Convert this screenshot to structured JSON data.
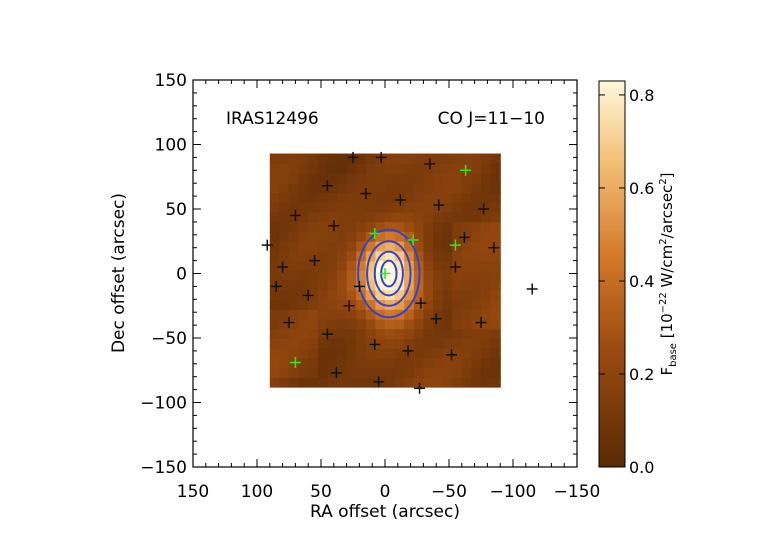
{
  "chart_data": {
    "type": "heatmap",
    "title_left": "IRAS12496",
    "title_right": "CO J=11−10",
    "xlabel": "RA offset (arcsec)",
    "ylabel": "Dec offset (arcsec)",
    "xlim": [
      150,
      -150
    ],
    "ylim": [
      -150,
      150
    ],
    "x_ticks": [
      "150",
      "100",
      "50",
      "0",
      "−50",
      "−100",
      "−150"
    ],
    "y_ticks": [
      "150",
      "100",
      "50",
      "0",
      "−50",
      "−100",
      "−150"
    ],
    "x_tick_values": [
      150,
      100,
      50,
      0,
      -50,
      -100,
      -150
    ],
    "y_tick_values": [
      150,
      100,
      50,
      0,
      -50,
      -100,
      -150
    ],
    "map_extent": {
      "ra": [
        90,
        -90
      ],
      "dec": [
        -88,
        93
      ]
    },
    "peak_value": 0.82,
    "colorbar": {
      "label_main": "F",
      "label_sub": "base",
      "label_rest": " [10",
      "label_exp1": "−22",
      "label_mid": " W/cm",
      "label_exp2": "2",
      "label_mid2": "/arcsec",
      "label_exp3": "2",
      "label_end": "]",
      "range": [
        0.0,
        0.83
      ],
      "ticks": [
        "0.0",
        "0.2",
        "0.4",
        "0.6",
        "0.8"
      ],
      "tick_values": [
        0.0,
        0.2,
        0.4,
        0.6,
        0.8
      ]
    },
    "contours": {
      "color": "#3344cc",
      "levels": [
        0.25,
        0.42,
        0.58,
        0.72
      ]
    },
    "colors": {
      "low": "#5a2a05",
      "mid": "#c86a1e",
      "high": "#fff8dc"
    },
    "points_black": [
      [
        25,
        90
      ],
      [
        3,
        90
      ],
      [
        -35,
        85
      ],
      [
        45,
        68
      ],
      [
        15,
        62
      ],
      [
        -12,
        57
      ],
      [
        -77,
        50
      ],
      [
        70,
        45
      ],
      [
        -42,
        53
      ],
      [
        40,
        37
      ],
      [
        92,
        22
      ],
      [
        -85,
        20
      ],
      [
        80,
        5
      ],
      [
        -115,
        -12
      ],
      [
        60,
        -17
      ],
      [
        28,
        -25
      ],
      [
        -28,
        -23
      ],
      [
        -40,
        -35
      ],
      [
        75,
        -38
      ],
      [
        -75,
        -38
      ],
      [
        45,
        -47
      ],
      [
        8,
        -55
      ],
      [
        -18,
        -60
      ],
      [
        -52,
        -63
      ],
      [
        38,
        -77
      ],
      [
        5,
        -84
      ],
      [
        -27,
        -89
      ],
      [
        -55,
        5
      ],
      [
        85,
        -10
      ],
      [
        55,
        10
      ],
      [
        -62,
        28
      ],
      [
        20,
        -10
      ]
    ],
    "points_green": [
      [
        0,
        0
      ],
      [
        -63,
        80
      ],
      [
        8,
        31
      ],
      [
        -22,
        26
      ],
      [
        -55,
        22
      ],
      [
        70,
        -69
      ]
    ]
  }
}
